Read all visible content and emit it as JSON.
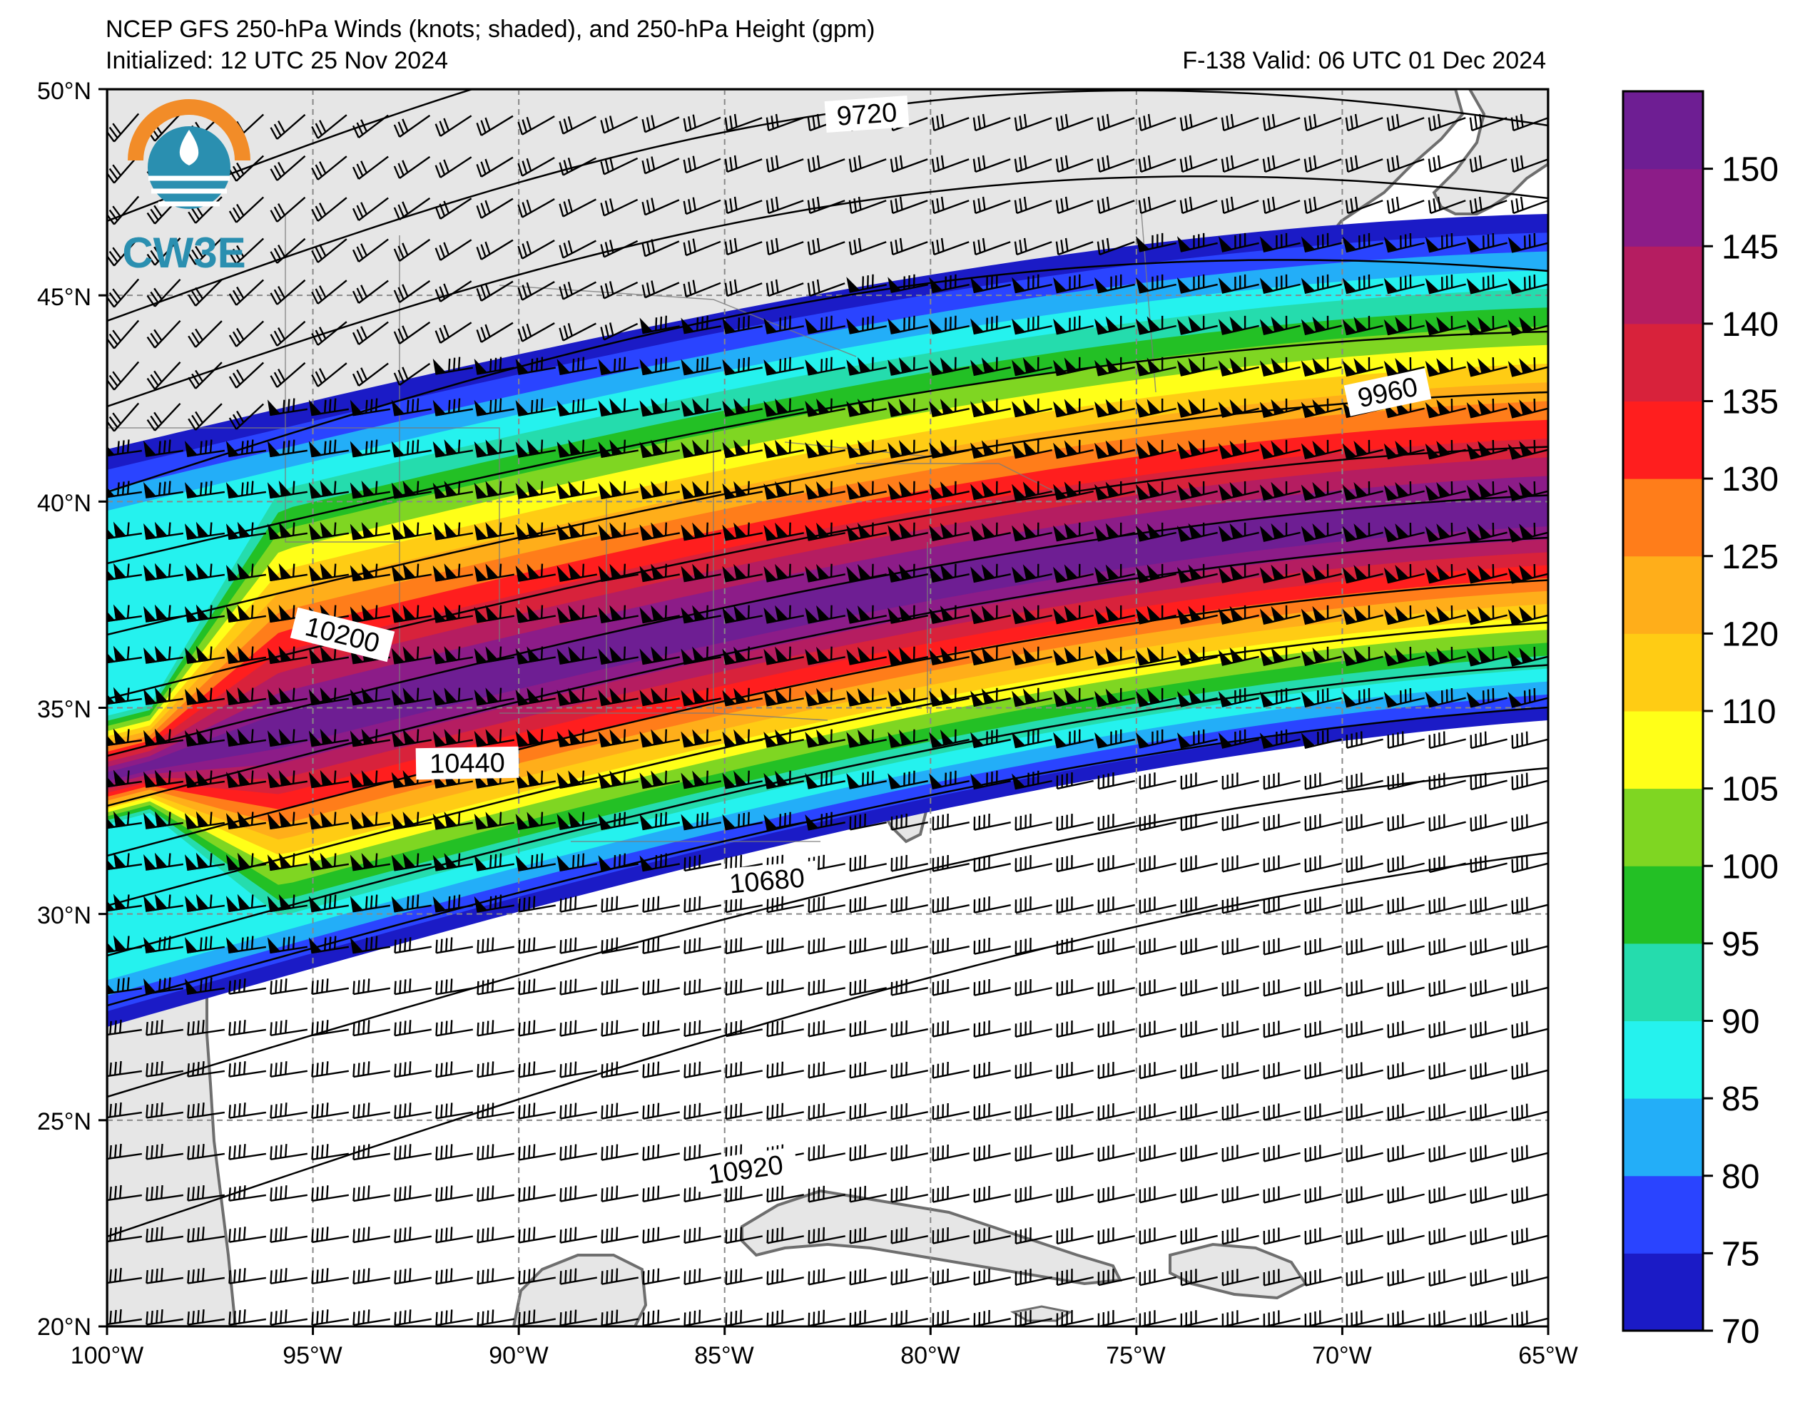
{
  "header": {
    "title": "NCEP GFS 250-hPa Winds (knots; shaded), and 250-hPa Height (gpm)",
    "initialized": "Initialized: 12 UTC 25 Nov 2024",
    "valid": "F-138  Valid: 06 UTC 01 Dec 2024"
  },
  "logo": {
    "text": "CW3E"
  },
  "axes": {
    "lat_labels": [
      "50°N",
      "45°N",
      "40°N",
      "35°N",
      "30°N",
      "25°N",
      "20°N"
    ],
    "lon_labels": [
      "100°W",
      "95°W",
      "90°W",
      "85°W",
      "80°W",
      "75°W",
      "70°W",
      "65°W"
    ]
  },
  "contour_labels": [
    "9720",
    "9960",
    "10200",
    "10440",
    "10680",
    "10920"
  ],
  "colorbar": {
    "ticks": [
      "70",
      "75",
      "80",
      "85",
      "90",
      "95",
      "100",
      "105",
      "110",
      "120",
      "125",
      "130",
      "135",
      "140",
      "145",
      "150"
    ],
    "colors": [
      "#1b1bc6",
      "#2a44ff",
      "#23aef8",
      "#25f2ee",
      "#25dcad",
      "#23c025",
      "#7fd622",
      "#ffff18",
      "#ffcc14",
      "#ffae1a",
      "#ff7d1a",
      "#ff1e1e",
      "#d8223b",
      "#b51d61",
      "#8c1c88",
      "#6e1e93"
    ]
  },
  "colors": {
    "land": "#e6e6e6",
    "ocean": "#ffffff",
    "coast": "#6e6e6e",
    "logo_orange": "#f28c28",
    "logo_teal": "#2a8fb0"
  }
}
